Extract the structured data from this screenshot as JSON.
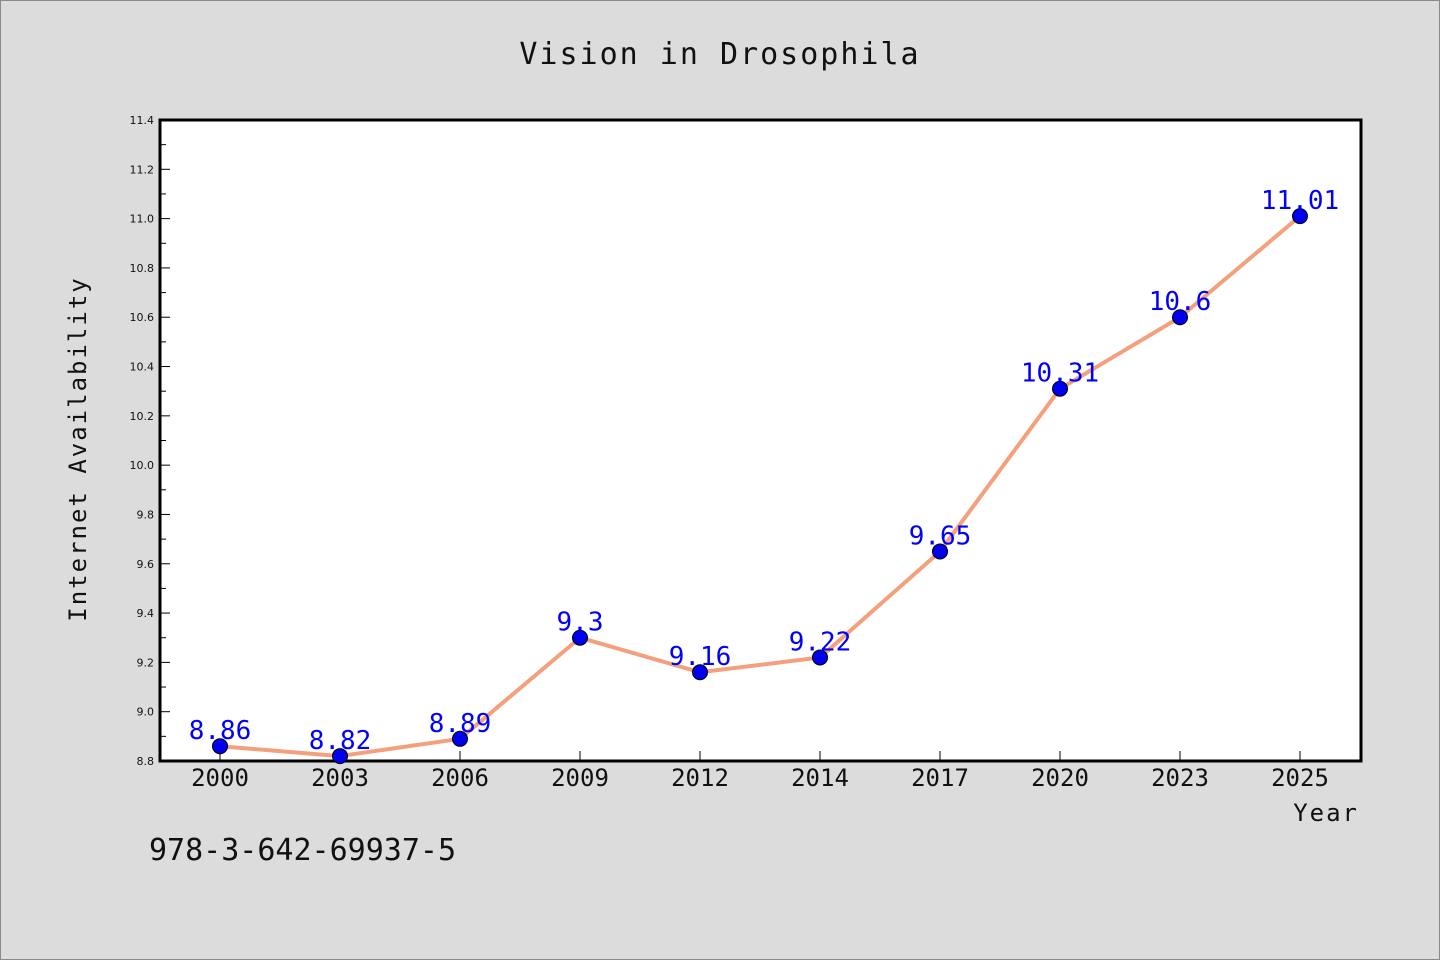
{
  "chart_data": {
    "type": "line",
    "title": "Vision in Drosophila",
    "xlabel": "Year",
    "ylabel": "Internet Availability",
    "categories": [
      "2000",
      "2003",
      "2006",
      "2009",
      "2012",
      "2014",
      "2017",
      "2020",
      "2023",
      "2025"
    ],
    "series": [
      {
        "values": [
          8.86,
          8.82,
          8.89,
          9.3,
          9.16,
          9.22,
          9.65,
          10.31,
          10.6,
          11.01
        ],
        "labels": [
          "8.86",
          "8.82",
          "8.89",
          "9.3",
          "9.16",
          "9.22",
          "9.65",
          "10.31",
          "10.6",
          "11.01"
        ],
        "line_color": "#f4a07c",
        "marker_color": "#0000ee"
      }
    ],
    "ylim": [
      8.8,
      11.4
    ],
    "yticks": [
      "8.8",
      "9.0",
      "9.2",
      "9.4",
      "9.6",
      "9.8",
      "10.0",
      "10.2",
      "10.4",
      "10.6",
      "10.8",
      "11.0",
      "11.2",
      "11.4"
    ],
    "grid": false,
    "label_color": "#0000ff"
  },
  "annotation": "978-3-642-69937-5"
}
